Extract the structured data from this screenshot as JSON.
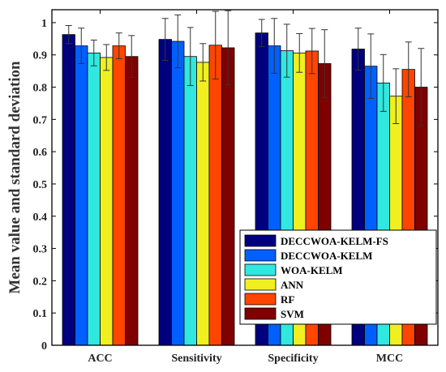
{
  "chart_data": {
    "type": "bar",
    "ylabel": "Mean value and standard deviation",
    "ylim": [
      0,
      1.04
    ],
    "yticks": [
      "0",
      "0.1",
      "0.2",
      "0.3",
      "0.4",
      "0.5",
      "0.6",
      "0.7",
      "0.8",
      "0.9",
      "1"
    ],
    "categories": [
      "ACC",
      "Sensitivity",
      "Specificity",
      "MCC"
    ],
    "legend_position": "bottom-right",
    "series": [
      {
        "name": "DECCWOA-KELM-FS",
        "color": "#00007f",
        "values": [
          0.963,
          0.948,
          0.968,
          0.918
        ],
        "std": [
          0.028,
          0.065,
          0.042,
          0.065
        ]
      },
      {
        "name": "DECCWOA-KELM",
        "color": "#0060ff",
        "values": [
          0.928,
          0.942,
          0.928,
          0.865
        ],
        "std": [
          0.055,
          0.082,
          0.085,
          0.1
        ]
      },
      {
        "name": "WOA-KELM",
        "color": "#30e8e0",
        "values": [
          0.906,
          0.895,
          0.913,
          0.813
        ],
        "std": [
          0.04,
          0.09,
          0.082,
          0.088
        ]
      },
      {
        "name": "ANN",
        "color": "#f0f020",
        "values": [
          0.892,
          0.877,
          0.906,
          0.772
        ],
        "std": [
          0.04,
          0.058,
          0.06,
          0.085
        ]
      },
      {
        "name": "RF",
        "color": "#ff4500",
        "values": [
          0.928,
          0.93,
          0.912,
          0.855
        ],
        "std": [
          0.04,
          0.105,
          0.07,
          0.085
        ]
      },
      {
        "name": "SVM",
        "color": "#800000",
        "values": [
          0.895,
          0.922,
          0.873,
          0.8
        ],
        "std": [
          0.065,
          0.115,
          0.105,
          0.12
        ]
      }
    ]
  }
}
